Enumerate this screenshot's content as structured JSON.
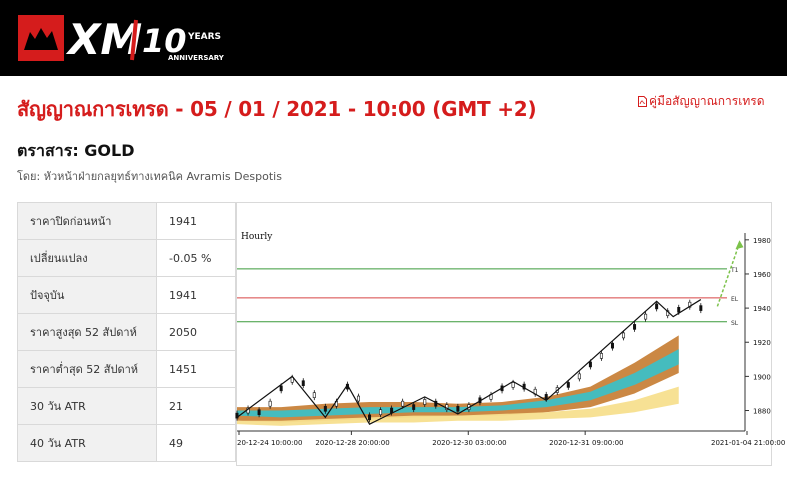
{
  "header": {
    "brand": "XM",
    "badge_number": "10",
    "badge_years": "YEARS",
    "badge_anniversary": "ANNIVERSARY"
  },
  "page": {
    "title": "สัญญาณการเทรด - 05 / 01 / 2021 - 10:00 (GMT +2)",
    "guide_link": "คู่มือสัญญาณการเทรด",
    "instrument": "ตราสาร: GOLD",
    "author": "โดย: หัวหน้าฝ่ายกลยุทธ์ทางเทคนิค Avramis Despotis"
  },
  "stats": [
    {
      "label": "ราคาปิดก่อนหน้า",
      "value": "1941"
    },
    {
      "label": "เปลี่ยนแปลง",
      "value": "-0.05 %"
    },
    {
      "label": "ปัจจุบัน",
      "value": "1941"
    },
    {
      "label": "ราคาสูงสุด 52 สัปดาห์",
      "value": "2050"
    },
    {
      "label": "ราคาต่ำสุด 52 สัปดาห์",
      "value": "1451"
    },
    {
      "label": "30 วัน ATR",
      "value": "21"
    },
    {
      "label": "40 วัน ATR",
      "value": "49"
    }
  ],
  "chart_data": {
    "type": "line",
    "title": "Hourly",
    "x_tick_labels": [
      "20-12-24 10:00:00",
      "2020-12-28 20:00:00",
      "2020-12-30 03:00:00",
      "2020-12-31 09:00:00",
      "2021-01-04 21:00:00"
    ],
    "y_tick_labels": [
      "1980",
      "1960",
      "1940",
      "1920",
      "1900",
      "1880"
    ],
    "ylim": [
      1868,
      1984
    ],
    "levels": [
      {
        "name": "T1",
        "value": 1963,
        "color": "#3a9a3a"
      },
      {
        "name": "EL",
        "value": 1946,
        "color": "#d64545"
      },
      {
        "name": "SL",
        "value": 1932,
        "color": "#3a9a3a"
      }
    ],
    "price_points": [
      {
        "x": 0,
        "y": 1877
      },
      {
        "x": 2,
        "y": 1880
      },
      {
        "x": 4,
        "y": 1879
      },
      {
        "x": 6,
        "y": 1884
      },
      {
        "x": 8,
        "y": 1893
      },
      {
        "x": 10,
        "y": 1898
      },
      {
        "x": 12,
        "y": 1896
      },
      {
        "x": 14,
        "y": 1889
      },
      {
        "x": 16,
        "y": 1881
      },
      {
        "x": 18,
        "y": 1884
      },
      {
        "x": 20,
        "y": 1894
      },
      {
        "x": 22,
        "y": 1887
      },
      {
        "x": 24,
        "y": 1876
      },
      {
        "x": 26,
        "y": 1879
      },
      {
        "x": 28,
        "y": 1880
      },
      {
        "x": 30,
        "y": 1884
      },
      {
        "x": 32,
        "y": 1882
      },
      {
        "x": 34,
        "y": 1885
      },
      {
        "x": 36,
        "y": 1884
      },
      {
        "x": 38,
        "y": 1882
      },
      {
        "x": 40,
        "y": 1881
      },
      {
        "x": 42,
        "y": 1882
      },
      {
        "x": 44,
        "y": 1886
      },
      {
        "x": 46,
        "y": 1888
      },
      {
        "x": 48,
        "y": 1893
      },
      {
        "x": 50,
        "y": 1895
      },
      {
        "x": 52,
        "y": 1894
      },
      {
        "x": 54,
        "y": 1891
      },
      {
        "x": 56,
        "y": 1888
      },
      {
        "x": 58,
        "y": 1892
      },
      {
        "x": 60,
        "y": 1895
      },
      {
        "x": 62,
        "y": 1900
      },
      {
        "x": 64,
        "y": 1907
      },
      {
        "x": 66,
        "y": 1912
      },
      {
        "x": 68,
        "y": 1918
      },
      {
        "x": 70,
        "y": 1924
      },
      {
        "x": 72,
        "y": 1929
      },
      {
        "x": 74,
        "y": 1935
      },
      {
        "x": 76,
        "y": 1941
      },
      {
        "x": 78,
        "y": 1937
      },
      {
        "x": 80,
        "y": 1939
      },
      {
        "x": 82,
        "y": 1942
      },
      {
        "x": 84,
        "y": 1940
      }
    ],
    "zigzag": [
      {
        "x": 0,
        "y": 1876
      },
      {
        "x": 10,
        "y": 1900
      },
      {
        "x": 16,
        "y": 1876
      },
      {
        "x": 20,
        "y": 1895
      },
      {
        "x": 24,
        "y": 1872
      },
      {
        "x": 34,
        "y": 1888
      },
      {
        "x": 40,
        "y": 1878
      },
      {
        "x": 50,
        "y": 1897
      },
      {
        "x": 56,
        "y": 1886
      },
      {
        "x": 76,
        "y": 1944
      },
      {
        "x": 79,
        "y": 1935
      },
      {
        "x": 84,
        "y": 1945
      }
    ],
    "projection": [
      {
        "x": 87,
        "y": 1941
      },
      {
        "x": 91,
        "y": 1978
      }
    ],
    "ribbons": [
      {
        "name": "outer",
        "color": "#c8823a",
        "upper": [
          1882,
          1882,
          1884,
          1885,
          1885,
          1884,
          1885,
          1888,
          1894,
          1908,
          1924
        ],
        "lower": [
          1874,
          1873,
          1874,
          1875,
          1876,
          1877,
          1877,
          1879,
          1882,
          1890,
          1902
        ]
      },
      {
        "name": "inner",
        "color": "#3dbfc5",
        "upper": [
          1880,
          1880,
          1881,
          1882,
          1882,
          1882,
          1883,
          1886,
          1891,
          1902,
          1916
        ],
        "lower": [
          1877,
          1876,
          1877,
          1878,
          1879,
          1879,
          1880,
          1882,
          1886,
          1895,
          1907
        ]
      },
      {
        "name": "lower",
        "color": "#f7df8e",
        "upper": [
          1874,
          1874,
          1875,
          1876,
          1877,
          1877,
          1878,
          1879,
          1881,
          1886,
          1894
        ],
        "lower": [
          1872,
          1871,
          1872,
          1873,
          1873,
          1874,
          1874,
          1875,
          1876,
          1879,
          1884
        ]
      }
    ],
    "ribbon_x": [
      0,
      8,
      16,
      24,
      32,
      40,
      48,
      56,
      64,
      72,
      80
    ]
  }
}
